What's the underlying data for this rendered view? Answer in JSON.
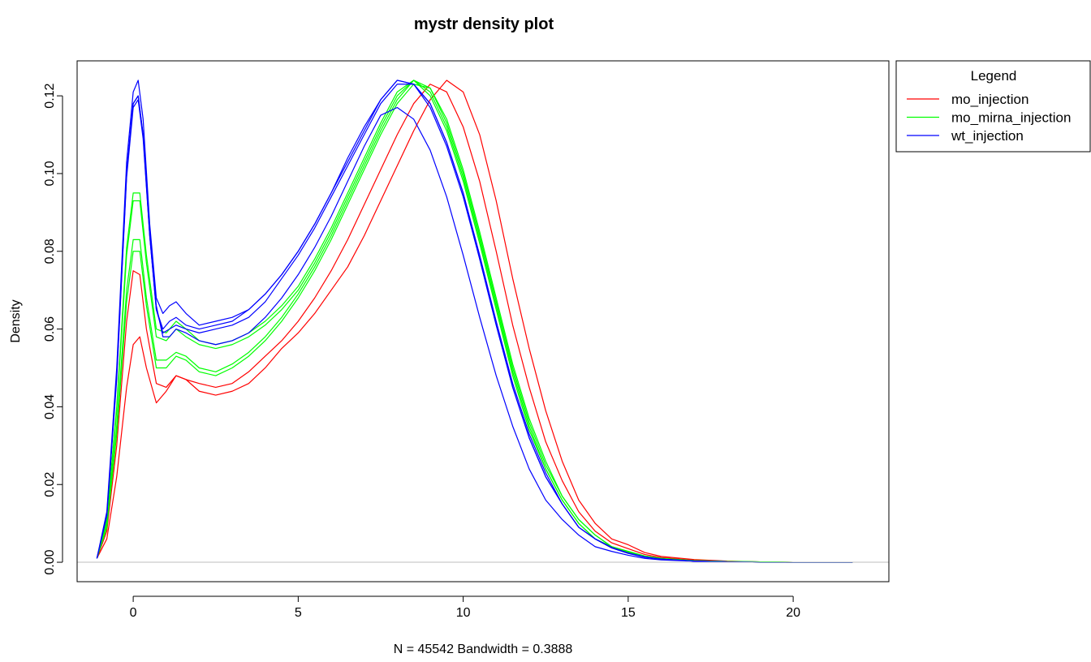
{
  "chart_data": {
    "type": "line",
    "title": "mystr density plot",
    "xlabel": "N = 45542   Bandwidth = 0.3888",
    "ylabel": "Density",
    "xlim": [
      -1.7,
      22.9
    ],
    "ylim": [
      -0.005,
      0.129
    ],
    "x_ticks": [
      0,
      5,
      10,
      15,
      20
    ],
    "y_ticks": [
      0.0,
      0.02,
      0.04,
      0.06,
      0.08,
      0.1,
      0.12
    ],
    "x_tick_labels": [
      "0",
      "5",
      "10",
      "15",
      "20"
    ],
    "y_tick_labels": [
      "0.00",
      "0.02",
      "0.04",
      "0.06",
      "0.08",
      "0.10",
      "0.12"
    ],
    "grid": false,
    "baseline": 0,
    "baseline_color": "#bebebe",
    "legend": {
      "title": "Legend",
      "placement": "outside-right-top",
      "entries": [
        {
          "label": "mo_injection",
          "color": "#ff0000"
        },
        {
          "label": "mo_mirna_injection",
          "color": "#00ff00"
        },
        {
          "label": "wt_injection",
          "color": "#0000ff"
        }
      ]
    },
    "series": [
      {
        "group": "mo_injection",
        "color": "#ff0000",
        "x": [
          -1.1,
          -0.8,
          -0.5,
          -0.2,
          0.0,
          0.2,
          0.4,
          0.7,
          1.0,
          1.3,
          1.6,
          2.0,
          2.5,
          3.0,
          3.5,
          4.0,
          4.5,
          5.0,
          5.5,
          6.0,
          6.5,
          7.0,
          7.5,
          8.0,
          8.5,
          9.0,
          9.5,
          10.0,
          10.5,
          11.0,
          11.5,
          12.0,
          12.5,
          13.0,
          13.5,
          14.0,
          14.5,
          15.0,
          15.5,
          16.0,
          17.0,
          18.0,
          19.0,
          20.0,
          21.0,
          21.8
        ],
        "y": [
          0.001,
          0.006,
          0.022,
          0.045,
          0.056,
          0.058,
          0.05,
          0.041,
          0.044,
          0.048,
          0.047,
          0.044,
          0.043,
          0.044,
          0.046,
          0.05,
          0.055,
          0.059,
          0.064,
          0.07,
          0.076,
          0.084,
          0.093,
          0.102,
          0.111,
          0.119,
          0.124,
          0.121,
          0.11,
          0.093,
          0.073,
          0.055,
          0.039,
          0.026,
          0.016,
          0.01,
          0.006,
          0.0045,
          0.0025,
          0.0015,
          0.0007,
          0.0003,
          0.0001,
          0.0,
          0.0,
          0.0
        ]
      },
      {
        "group": "mo_injection",
        "color": "#ff0000",
        "x": [
          -1.1,
          -0.8,
          -0.5,
          -0.2,
          0.0,
          0.2,
          0.4,
          0.7,
          1.0,
          1.3,
          1.6,
          2.0,
          2.5,
          3.0,
          3.5,
          4.0,
          4.5,
          5.0,
          5.5,
          6.0,
          6.5,
          7.0,
          7.5,
          8.0,
          8.5,
          9.0,
          9.5,
          10.0,
          10.5,
          11.0,
          11.5,
          12.0,
          12.5,
          13.0,
          13.5,
          14.0,
          14.5,
          15.0,
          15.5,
          16.0,
          17.0,
          18.0,
          19.0,
          20.0,
          21.0,
          21.8
        ],
        "y": [
          0.001,
          0.008,
          0.03,
          0.062,
          0.075,
          0.074,
          0.06,
          0.046,
          0.045,
          0.048,
          0.047,
          0.046,
          0.045,
          0.046,
          0.049,
          0.053,
          0.057,
          0.062,
          0.068,
          0.075,
          0.083,
          0.092,
          0.101,
          0.11,
          0.118,
          0.123,
          0.121,
          0.112,
          0.098,
          0.08,
          0.061,
          0.045,
          0.031,
          0.021,
          0.013,
          0.008,
          0.005,
          0.0035,
          0.002,
          0.0012,
          0.0005,
          0.0002,
          0.0001,
          0.0,
          0.0,
          0.0
        ]
      },
      {
        "group": "mo_mirna_injection",
        "color": "#00ff00",
        "x": [
          -1.1,
          -0.8,
          -0.5,
          -0.2,
          0.0,
          0.2,
          0.4,
          0.7,
          1.0,
          1.3,
          1.6,
          2.0,
          2.5,
          3.0,
          3.5,
          4.0,
          4.5,
          5.0,
          5.5,
          6.0,
          6.5,
          7.0,
          7.5,
          8.0,
          8.5,
          9.0,
          9.5,
          10.0,
          10.5,
          11.0,
          11.5,
          12.0,
          12.5,
          13.0,
          13.5,
          14.0,
          14.5,
          15.0,
          15.5,
          16.0,
          17.0,
          18.0,
          19.0,
          20.0,
          21.0,
          21.8
        ],
        "y": [
          0.001,
          0.009,
          0.033,
          0.067,
          0.08,
          0.08,
          0.066,
          0.05,
          0.05,
          0.053,
          0.052,
          0.049,
          0.048,
          0.05,
          0.053,
          0.057,
          0.062,
          0.068,
          0.075,
          0.083,
          0.092,
          0.101,
          0.11,
          0.118,
          0.123,
          0.122,
          0.114,
          0.101,
          0.085,
          0.068,
          0.051,
          0.037,
          0.026,
          0.017,
          0.011,
          0.007,
          0.004,
          0.0028,
          0.0016,
          0.001,
          0.0004,
          0.0002,
          0.0001,
          0.0,
          0.0,
          0.0
        ]
      },
      {
        "group": "mo_mirna_injection",
        "color": "#00ff00",
        "x": [
          -1.1,
          -0.8,
          -0.5,
          -0.2,
          0.0,
          0.2,
          0.4,
          0.7,
          1.0,
          1.3,
          1.6,
          2.0,
          2.5,
          3.0,
          3.5,
          4.0,
          4.5,
          5.0,
          5.5,
          6.0,
          6.5,
          7.0,
          7.5,
          8.0,
          8.5,
          9.0,
          9.5,
          10.0,
          10.5,
          11.0,
          11.5,
          12.0,
          12.5,
          13.0,
          13.5,
          14.0,
          14.5,
          15.0,
          15.5,
          16.0,
          17.0,
          18.0,
          19.0,
          20.0,
          21.0,
          21.8
        ],
        "y": [
          0.001,
          0.009,
          0.035,
          0.07,
          0.083,
          0.083,
          0.068,
          0.052,
          0.052,
          0.054,
          0.053,
          0.05,
          0.049,
          0.051,
          0.054,
          0.058,
          0.063,
          0.069,
          0.076,
          0.084,
          0.093,
          0.102,
          0.111,
          0.119,
          0.124,
          0.122,
          0.113,
          0.1,
          0.084,
          0.067,
          0.05,
          0.036,
          0.025,
          0.017,
          0.011,
          0.007,
          0.004,
          0.0027,
          0.0016,
          0.001,
          0.0004,
          0.0002,
          0.0001,
          0.0,
          0.0,
          0.0
        ]
      },
      {
        "group": "mo_mirna_injection",
        "color": "#00ff00",
        "x": [
          -1.1,
          -0.8,
          -0.5,
          -0.2,
          0.0,
          0.2,
          0.4,
          0.7,
          1.0,
          1.3,
          1.6,
          2.0,
          2.5,
          3.0,
          3.5,
          4.0,
          4.5,
          5.0,
          5.5,
          6.0,
          6.5,
          7.0,
          7.5,
          8.0,
          8.5,
          9.0,
          9.5,
          10.0,
          10.5,
          11.0,
          11.5,
          12.0,
          12.5,
          13.0,
          13.5,
          14.0,
          14.5,
          15.0,
          15.5,
          16.0,
          17.0,
          18.0,
          19.0,
          20.0,
          21.0,
          21.8
        ],
        "y": [
          0.001,
          0.01,
          0.039,
          0.079,
          0.093,
          0.093,
          0.077,
          0.058,
          0.057,
          0.06,
          0.058,
          0.056,
          0.055,
          0.056,
          0.058,
          0.061,
          0.065,
          0.07,
          0.077,
          0.085,
          0.094,
          0.103,
          0.112,
          0.12,
          0.124,
          0.121,
          0.112,
          0.099,
          0.083,
          0.066,
          0.049,
          0.035,
          0.024,
          0.016,
          0.01,
          0.006,
          0.004,
          0.0026,
          0.0015,
          0.0009,
          0.0004,
          0.0002,
          0.0001,
          0.0,
          0.0,
          0.0
        ]
      },
      {
        "group": "mo_mirna_injection",
        "color": "#00ff00",
        "x": [
          -1.1,
          -0.8,
          -0.5,
          -0.2,
          0.0,
          0.2,
          0.4,
          0.7,
          1.0,
          1.3,
          1.6,
          2.0,
          2.5,
          3.0,
          3.5,
          4.0,
          4.5,
          5.0,
          5.5,
          6.0,
          6.5,
          7.0,
          7.5,
          8.0,
          8.5,
          9.0,
          9.5,
          10.0,
          10.5,
          11.0,
          11.5,
          12.0,
          12.5,
          13.0,
          13.5,
          14.0,
          14.5,
          15.0,
          15.5,
          16.0,
          17.0,
          18.0,
          19.0,
          20.0,
          21.0,
          21.8
        ],
        "y": [
          0.001,
          0.011,
          0.04,
          0.081,
          0.095,
          0.095,
          0.079,
          0.06,
          0.059,
          0.062,
          0.06,
          0.057,
          0.056,
          0.057,
          0.059,
          0.062,
          0.066,
          0.071,
          0.078,
          0.086,
          0.095,
          0.104,
          0.113,
          0.121,
          0.124,
          0.12,
          0.111,
          0.098,
          0.082,
          0.065,
          0.048,
          0.034,
          0.024,
          0.016,
          0.01,
          0.006,
          0.004,
          0.0025,
          0.0015,
          0.0009,
          0.0004,
          0.0002,
          0.0001,
          0.0,
          0.0,
          0.0
        ]
      },
      {
        "group": "wt_injection",
        "color": "#0000ff",
        "x": [
          -1.1,
          -0.8,
          -0.5,
          -0.2,
          0.0,
          0.15,
          0.3,
          0.5,
          0.7,
          0.9,
          1.1,
          1.3,
          1.6,
          2.0,
          2.5,
          3.0,
          3.5,
          4.0,
          4.5,
          5.0,
          5.5,
          6.0,
          6.5,
          7.0,
          7.5,
          8.0,
          8.5,
          9.0,
          9.5,
          10.0,
          10.5,
          11.0,
          11.5,
          12.0,
          12.5,
          13.0,
          13.5,
          14.0,
          14.5,
          15.0,
          15.5,
          16.0,
          17.0,
          18.0,
          19.0,
          20.0,
          21.0,
          21.8
        ],
        "y": [
          0.001,
          0.012,
          0.048,
          0.1,
          0.118,
          0.12,
          0.11,
          0.085,
          0.066,
          0.058,
          0.058,
          0.06,
          0.059,
          0.057,
          0.056,
          0.057,
          0.059,
          0.063,
          0.068,
          0.074,
          0.081,
          0.089,
          0.098,
          0.107,
          0.115,
          0.117,
          0.114,
          0.106,
          0.094,
          0.079,
          0.063,
          0.048,
          0.035,
          0.024,
          0.016,
          0.011,
          0.007,
          0.004,
          0.0028,
          0.0018,
          0.001,
          0.0006,
          0.0003,
          0.0001,
          0.0,
          0.0,
          0.0,
          0.0
        ]
      },
      {
        "group": "wt_injection",
        "color": "#0000ff",
        "x": [
          -1.1,
          -0.8,
          -0.5,
          -0.2,
          0.0,
          0.15,
          0.3,
          0.5,
          0.7,
          0.9,
          1.1,
          1.3,
          1.6,
          2.0,
          2.5,
          3.0,
          3.5,
          4.0,
          4.5,
          5.0,
          5.5,
          6.0,
          6.5,
          7.0,
          7.5,
          8.0,
          8.5,
          9.0,
          9.5,
          10.0,
          10.5,
          11.0,
          11.5,
          12.0,
          12.5,
          13.0,
          13.5,
          14.0,
          14.5,
          15.0,
          15.5,
          16.0,
          17.0,
          18.0,
          19.0,
          20.0,
          21.0,
          21.8
        ],
        "y": [
          0.001,
          0.012,
          0.048,
          0.1,
          0.118,
          0.12,
          0.11,
          0.084,
          0.065,
          0.059,
          0.06,
          0.061,
          0.06,
          0.059,
          0.06,
          0.061,
          0.063,
          0.067,
          0.073,
          0.079,
          0.086,
          0.094,
          0.102,
          0.11,
          0.118,
          0.123,
          0.123,
          0.118,
          0.108,
          0.095,
          0.079,
          0.062,
          0.046,
          0.033,
          0.023,
          0.015,
          0.009,
          0.006,
          0.0038,
          0.0024,
          0.0014,
          0.0008,
          0.0003,
          0.0001,
          0.0,
          0.0,
          0.0,
          0.0
        ]
      },
      {
        "group": "wt_injection",
        "color": "#0000ff",
        "x": [
          -1.1,
          -0.8,
          -0.5,
          -0.2,
          0.0,
          0.15,
          0.3,
          0.5,
          0.7,
          0.9,
          1.1,
          1.3,
          1.6,
          2.0,
          2.5,
          3.0,
          3.5,
          4.0,
          4.5,
          5.0,
          5.5,
          6.0,
          6.5,
          7.0,
          7.5,
          8.0,
          8.5,
          9.0,
          9.5,
          10.0,
          10.5,
          11.0,
          11.5,
          12.0,
          12.5,
          13.0,
          13.5,
          14.0,
          14.5,
          15.0,
          15.5,
          16.0,
          17.0,
          18.0,
          19.0,
          20.0,
          21.0,
          21.8
        ],
        "y": [
          0.001,
          0.012,
          0.047,
          0.099,
          0.117,
          0.119,
          0.109,
          0.084,
          0.065,
          0.06,
          0.062,
          0.063,
          0.061,
          0.06,
          0.061,
          0.062,
          0.065,
          0.069,
          0.074,
          0.08,
          0.087,
          0.095,
          0.103,
          0.111,
          0.119,
          0.124,
          0.123,
          0.117,
          0.107,
          0.094,
          0.078,
          0.061,
          0.045,
          0.032,
          0.022,
          0.015,
          0.009,
          0.006,
          0.0037,
          0.0023,
          0.0013,
          0.0008,
          0.0003,
          0.0001,
          0.0,
          0.0,
          0.0,
          0.0
        ]
      },
      {
        "group": "wt_injection",
        "color": "#0000ff",
        "x": [
          -1.1,
          -0.8,
          -0.5,
          -0.2,
          0.0,
          0.15,
          0.3,
          0.5,
          0.7,
          0.9,
          1.1,
          1.3,
          1.6,
          2.0,
          2.5,
          3.0,
          3.5,
          4.0,
          4.5,
          5.0,
          5.5,
          6.0,
          6.5,
          7.0,
          7.5,
          8.0,
          8.5,
          9.0,
          9.5,
          10.0,
          10.5,
          11.0,
          11.5,
          12.0,
          12.5,
          13.0,
          13.5,
          14.0,
          14.5,
          15.0,
          15.5,
          16.0,
          17.0,
          18.0,
          19.0,
          20.0,
          21.0,
          21.8
        ],
        "y": [
          0.001,
          0.013,
          0.05,
          0.103,
          0.121,
          0.124,
          0.114,
          0.087,
          0.068,
          0.064,
          0.066,
          0.067,
          0.064,
          0.061,
          0.062,
          0.063,
          0.065,
          0.069,
          0.074,
          0.08,
          0.087,
          0.095,
          0.104,
          0.112,
          0.119,
          0.124,
          0.123,
          0.118,
          0.108,
          0.095,
          0.078,
          0.061,
          0.045,
          0.032,
          0.022,
          0.015,
          0.009,
          0.006,
          0.0037,
          0.0023,
          0.0013,
          0.0008,
          0.0003,
          0.0001,
          0.0,
          0.0,
          0.0,
          0.0
        ]
      }
    ]
  }
}
